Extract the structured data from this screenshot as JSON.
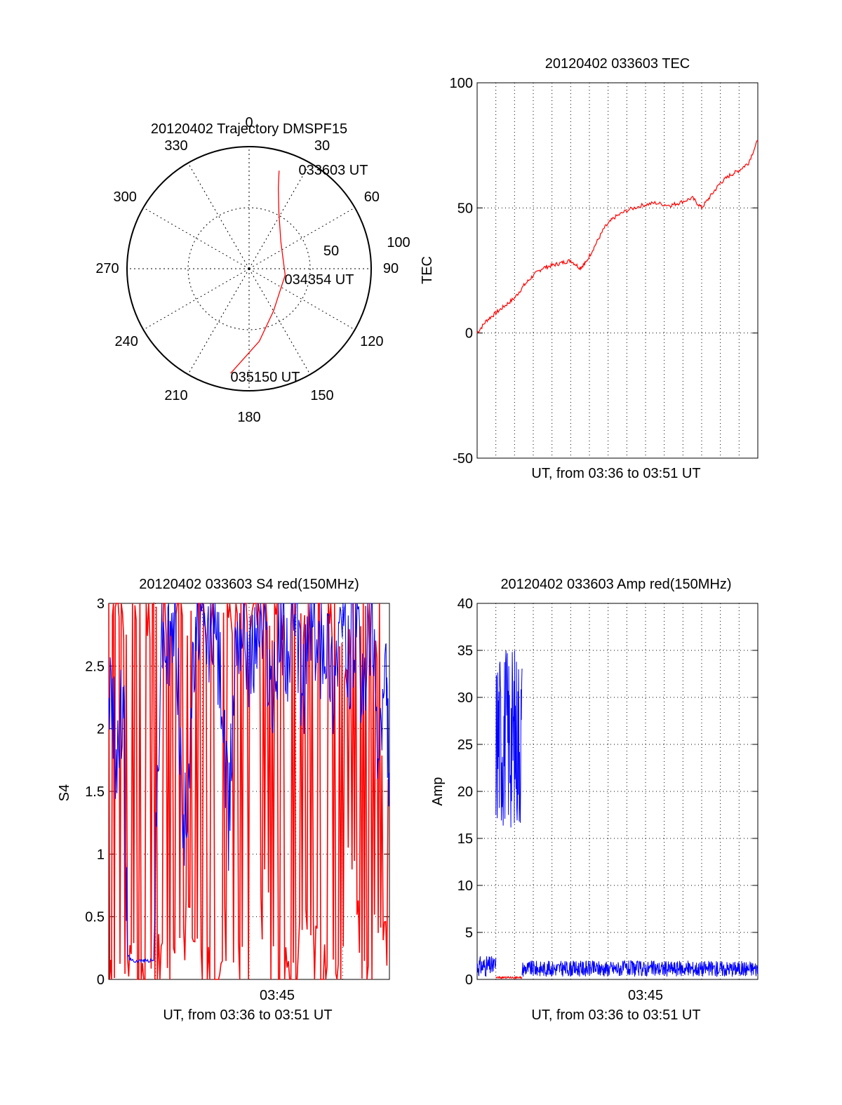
{
  "chart_data": [
    {
      "type": "polar",
      "title": "20120402 Trajectory DMSPF15",
      "azimuth_labels": [
        "0",
        "30",
        "60",
        "90",
        "120",
        "150",
        "180",
        "210",
        "240",
        "270",
        "300",
        "330"
      ],
      "elevation_labels": [
        "50",
        "100"
      ],
      "rlim": [
        0,
        100
      ],
      "grid": true,
      "series": [
        {
          "color": "#ff0000",
          "points": [
            {
              "az": 17,
              "r": 84
            },
            {
              "az": 20,
              "r": 70
            },
            {
              "az": 28,
              "r": 52
            },
            {
              "az": 50,
              "r": 34
            },
            {
              "az": 100,
              "r": 30
            },
            {
              "az": 150,
              "r": 40
            },
            {
              "az": 172,
              "r": 60
            },
            {
              "az": 190,
              "r": 87
            }
          ]
        }
      ],
      "annotations": [
        {
          "text": "033603 UT",
          "az": 25,
          "r": 80
        },
        {
          "text": "034354 UT",
          "az": 90,
          "r": 70
        },
        {
          "text": "035150 UT",
          "az": 170,
          "r": 88
        }
      ]
    },
    {
      "type": "line",
      "title": "20120402 033603 TEC",
      "ylabel": "TEC",
      "xlabel": "UT, from 03:36 to 03:51 UT",
      "ylim": [
        -50,
        100
      ],
      "yticks": [
        "-50",
        "0",
        "50",
        "100"
      ],
      "x_range_minutes": [
        0,
        15
      ],
      "grid": true,
      "series": [
        {
          "color": "#ff0000",
          "x": [
            0,
            0.5,
            1,
            1.5,
            2,
            2.5,
            3,
            3.5,
            4,
            4.5,
            5,
            5.5,
            5.8,
            6.3,
            6.8,
            7.3,
            8,
            8.8,
            9.5,
            10.3,
            10.8,
            11.5,
            12,
            12.5,
            13,
            13.5,
            14,
            14.5,
            15
          ],
          "y": [
            0,
            5,
            8,
            11,
            14,
            19,
            23,
            26,
            27,
            28,
            29,
            26,
            28,
            35,
            42,
            46,
            49,
            51,
            52,
            51,
            52,
            54,
            50,
            55,
            60,
            63,
            65,
            68,
            77
          ]
        }
      ]
    },
    {
      "type": "line",
      "title": "20120402 033603 S4 red(150MHz)",
      "ylabel": "S4",
      "xlabel": "UT, from 03:36 to 03:51 UT",
      "ylim": [
        0,
        3
      ],
      "yticks": [
        "0",
        "0.5",
        "1",
        "1.5",
        "2",
        "2.5",
        "3"
      ],
      "xtick_labels": [
        "03:45"
      ],
      "x_range_minutes": [
        0,
        15
      ],
      "grid": true,
      "series": [
        {
          "color": "#ff0000",
          "description_values": "dense oscillating S4 values between 0 and 3",
          "x": [
            0,
            0.3,
            0.6,
            1.0,
            1.4,
            1.8,
            2.2,
            2.6,
            3.0,
            3.4,
            3.8,
            4.2,
            4.6,
            5.0,
            5.4,
            5.8,
            6.2,
            6.6,
            7.0,
            7.4,
            7.8,
            8.2,
            8.6,
            9.0,
            9.4,
            9.8,
            10.2,
            10.6,
            11.0,
            11.4,
            11.8,
            12.2,
            12.6,
            13.0,
            13.4,
            13.8,
            14.2,
            14.6,
            15.0
          ],
          "y": [
            3,
            0,
            3,
            0.1,
            3,
            0,
            3,
            0.2,
            3,
            0,
            3,
            0.4,
            3,
            0.1,
            3,
            0,
            3,
            0.3,
            3,
            0,
            3,
            0.6,
            3,
            0.1,
            3,
            0,
            3,
            0.4,
            3,
            0.2,
            3,
            0,
            2.5,
            0.8,
            3,
            0.1,
            2.8,
            0.4,
            1.5
          ]
        },
        {
          "color": "#0000ff",
          "x": [
            0,
            0.4,
            0.8,
            1.0,
            1.2,
            1.6,
            2.0,
            2.4,
            2.8,
            3.2,
            3.6,
            4.0,
            4.4,
            4.8,
            5.2,
            5.6,
            6.0,
            6.4,
            6.8,
            7.2,
            7.6,
            8.0,
            8.4,
            8.8,
            9.2,
            9.6,
            10.0,
            10.4,
            10.8,
            11.2,
            11.6,
            12.0,
            12.4,
            12.8,
            13.2,
            13.6,
            14.0,
            14.4,
            14.8,
            15.0
          ],
          "y": [
            2.4,
            1.8,
            2.2,
            0.2,
            0.15,
            0.15,
            0.15,
            0.15,
            2.8,
            2.6,
            2.9,
            1.0,
            2.2,
            2.9,
            2.6,
            2.9,
            2.4,
            1.2,
            2.8,
            2.9,
            2.5,
            2.9,
            2.7,
            2.2,
            2.9,
            2.6,
            2.8,
            2.3,
            2.9,
            2.6,
            2.8,
            2.4,
            2.9,
            2.5,
            2.8,
            2.2,
            2.9,
            1.8,
            2.4,
            1.6
          ]
        }
      ]
    },
    {
      "type": "line",
      "title": "20120402 033603 Amp red(150MHz)",
      "ylabel": "Amp",
      "xlabel": "UT, from 03:36 to 03:51 UT",
      "ylim": [
        0,
        40
      ],
      "yticks": [
        "0",
        "5",
        "10",
        "15",
        "20",
        "25",
        "30",
        "35",
        "40"
      ],
      "xtick_labels": [
        "03:45"
      ],
      "x_range_minutes": [
        0,
        15
      ],
      "grid": true,
      "series": [
        {
          "color": "#0000ff",
          "segments": [
            {
              "x_start": 0,
              "x_end": 1.0,
              "y_low": 0.3,
              "y_high": 2.5
            },
            {
              "x_start": 1.0,
              "x_end": 2.4,
              "y_low": 16,
              "y_high": 36
            },
            {
              "x_start": 2.4,
              "x_end": 15,
              "y_low": 0.3,
              "y_high": 2.0
            }
          ]
        },
        {
          "color": "#ff0000",
          "segments": [
            {
              "x_start": 1.0,
              "x_end": 2.4,
              "y_low": 0.1,
              "y_high": 0.3
            }
          ]
        }
      ]
    }
  ]
}
